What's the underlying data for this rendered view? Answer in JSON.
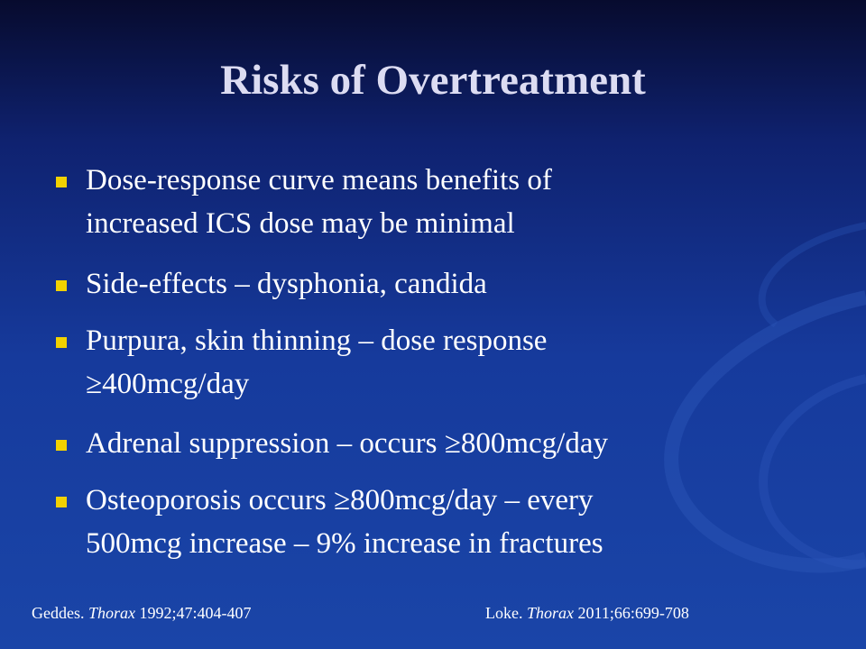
{
  "title": "Risks of Overtreatment",
  "bullets": [
    {
      "lines": [
        "Dose-response curve means benefits of",
        "increased ICS dose may be minimal"
      ]
    },
    {
      "lines": [
        "Side-effects – dysphonia, candida"
      ]
    },
    {
      "lines": [
        "Purpura, skin thinning – dose response",
        "≥400mcg/day"
      ]
    },
    {
      "lines": [
        "Adrenal suppression – occurs ≥800mcg/day"
      ]
    },
    {
      "lines": [
        "Osteoporosis occurs ≥800mcg/day – every",
        "500mcg increase – 9% increase in fractures"
      ]
    }
  ],
  "references": [
    {
      "author": "Geddes. ",
      "journal": "Thorax",
      "details": " 1992;47:404-407"
    },
    {
      "author": "Loke. ",
      "journal": "Thorax",
      "details": " 2011;66:699-708"
    }
  ]
}
